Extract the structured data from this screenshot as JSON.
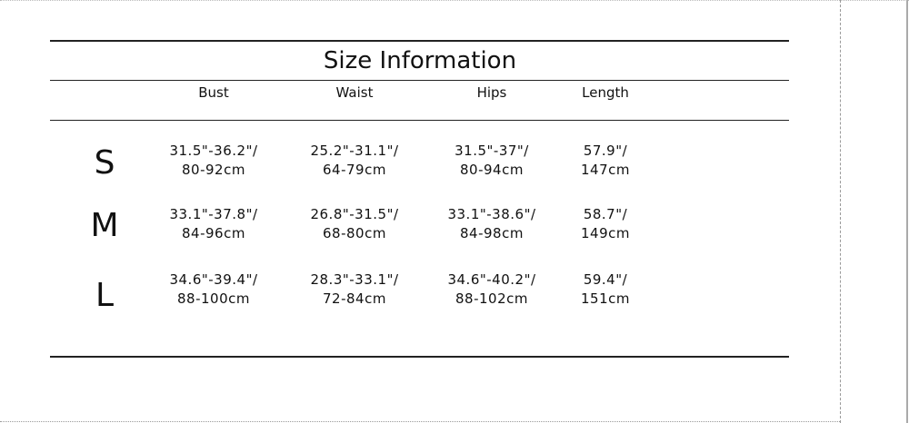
{
  "title": "Size Information",
  "headers": [
    "Bust",
    "Waist",
    "Hips",
    "Length"
  ],
  "rows": [
    {
      "size": "S",
      "values": [
        [
          "31.5\"-36.2\"/",
          "80-92cm"
        ],
        [
          "25.2\"-31.1\"/",
          "64-79cm"
        ],
        [
          "31.5\"-37\"/",
          "80-94cm"
        ],
        [
          "57.9\"/",
          "147cm"
        ]
      ]
    },
    {
      "size": "M",
      "values": [
        [
          "33.1\"-37.8\"/",
          "84-96cm"
        ],
        [
          "26.8\"-31.5\"/",
          "68-80cm"
        ],
        [
          "33.1\"-38.6\"/",
          "84-98cm"
        ],
        [
          "58.7\"/",
          "149cm"
        ]
      ]
    },
    {
      "size": "L",
      "values": [
        [
          "34.6\"-39.4\"/",
          "88-100cm"
        ],
        [
          "28.3\"-33.1\"/",
          "72-84cm"
        ],
        [
          "34.6\"-40.2\"/",
          "88-102cm"
        ],
        [
          "59.4\"/",
          "151cm"
        ]
      ]
    }
  ]
}
